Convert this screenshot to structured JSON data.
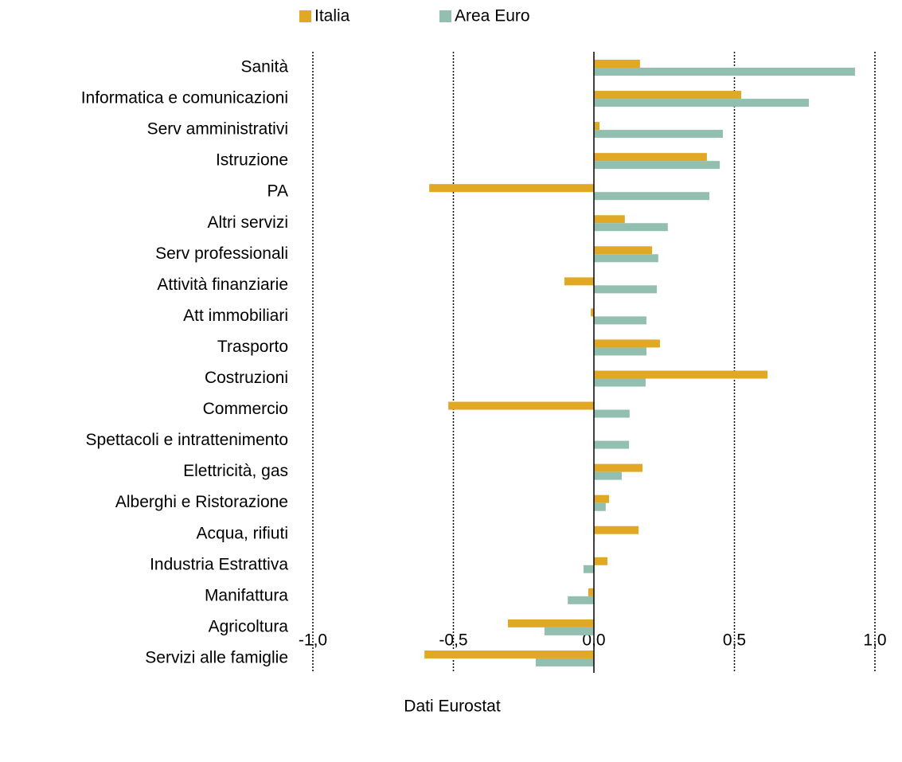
{
  "chart_data": {
    "type": "bar",
    "orientation": "horizontal",
    "x_label": "Dati Eurostat",
    "categories": [
      "Sanità",
      "Informatica e comunicazioni",
      "Serv amministrativi",
      "Istruzione",
      "PA",
      "Altri servizi",
      "Serv professionali",
      "Attività finanziarie",
      "Att immobiliari",
      "Trasporto",
      "Costruzioni",
      "Commercio",
      "Spettacoli e intrattenimento",
      "Elettricità, gas",
      "Alberghi e Ristorazione",
      "Acqua, rifiuti",
      "Industria Estrattiva",
      "Manifattura",
      "Agricoltura",
      "Servizi alle famiglie"
    ],
    "series": [
      {
        "name": "Italia",
        "color": "#e0a825",
        "values": [
          0.164,
          0.524,
          0.02,
          0.402,
          -0.586,
          0.11,
          0.207,
          -0.105,
          -0.011,
          0.235,
          0.618,
          -0.518,
          0,
          0.173,
          0.054,
          0.159,
          0.048,
          -0.02,
          -0.306,
          -0.603
        ]
      },
      {
        "name": "Area Euro",
        "color": "#93bfb0",
        "values": [
          0.929,
          0.765,
          0.459,
          0.448,
          0.411,
          0.263,
          0.229,
          0.224,
          0.187,
          0.187,
          0.184,
          0.127,
          0.125,
          0.099,
          0.042,
          0.002,
          -0.037,
          -0.093,
          -0.176,
          -0.207
        ]
      }
    ],
    "xlim": [
      -1,
      1
    ],
    "xticks": [
      {
        "value": -1,
        "label": "-1,0"
      },
      {
        "value": -0.5,
        "label": "-0,5"
      },
      {
        "value": 0,
        "label": "0,0"
      },
      {
        "value": 0.5,
        "label": "0,5"
      },
      {
        "value": 1,
        "label": "1,0"
      }
    ],
    "grid": true,
    "legend": "top"
  }
}
